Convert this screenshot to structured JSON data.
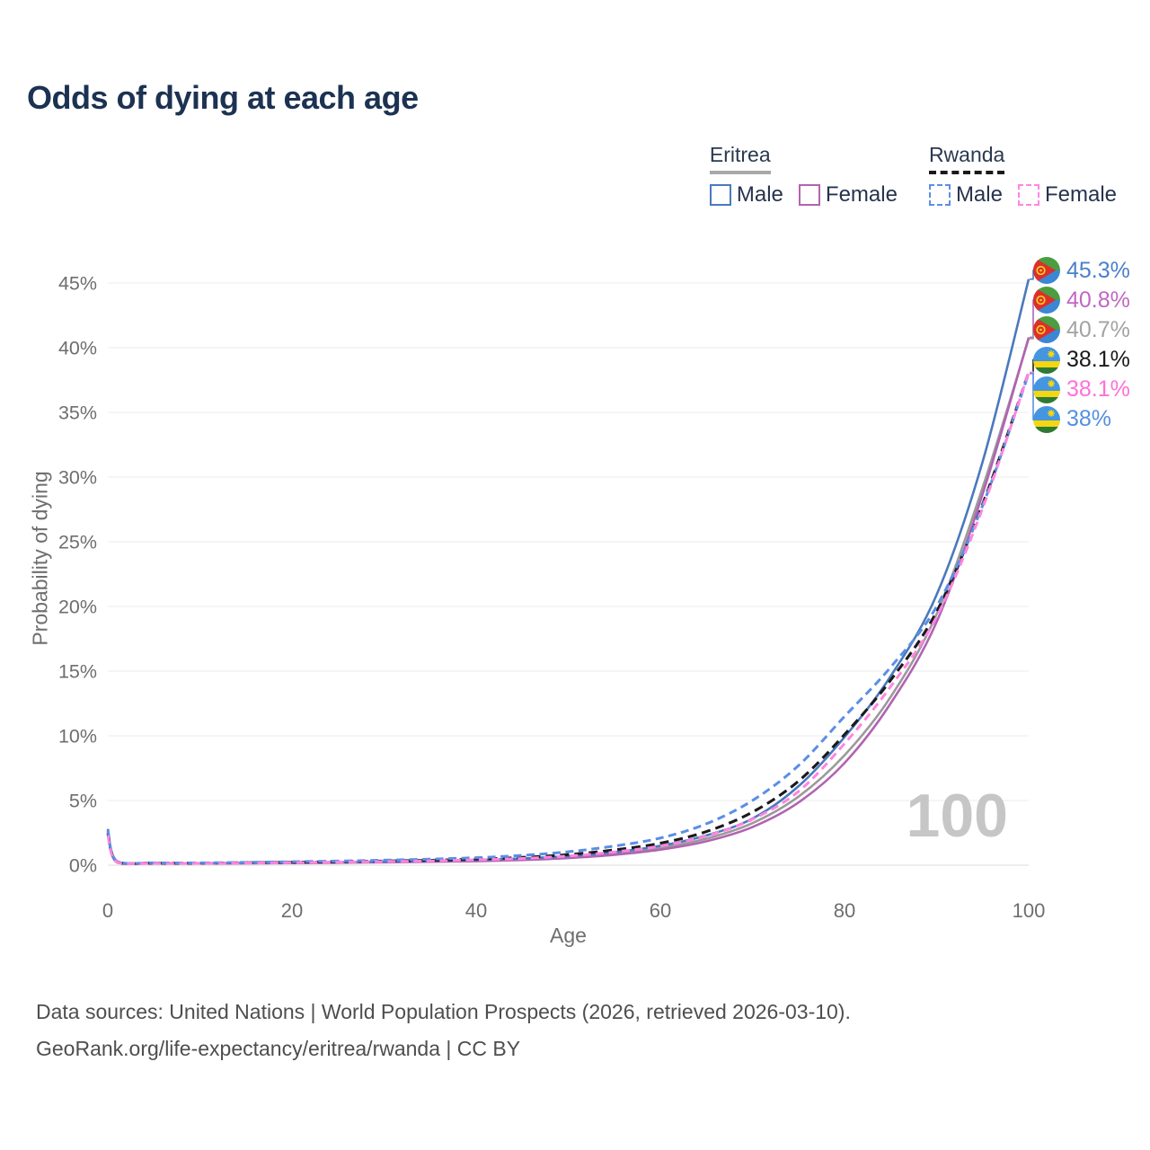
{
  "title": "Odds of dying at each age",
  "legend": {
    "groups": [
      {
        "name": "Eritrea",
        "line_style": "solid",
        "underline_color": "#a8a8a8",
        "items": [
          {
            "label": "Male",
            "color": "#4a79bd"
          },
          {
            "label": "Female",
            "color": "#b263b2"
          }
        ]
      },
      {
        "name": "Rwanda",
        "line_style": "dashed",
        "underline_color": "#1a1a1a",
        "items": [
          {
            "label": "Male",
            "color": "#5b8ee6"
          },
          {
            "label": "Female",
            "color": "#ff85e0"
          }
        ]
      }
    ]
  },
  "watermark": "100",
  "footer": {
    "line1": "Data sources: United Nations | World Population Prospects (2026, retrieved 2026-03-10).",
    "line2": "GeoRank.org/life-expectancy/eritrea/rwanda | CC BY"
  },
  "end_labels": [
    {
      "value": "45.3%",
      "color": "#4a80cc",
      "flag": "eritrea",
      "series": "Eritrea Male"
    },
    {
      "value": "40.8%",
      "color": "#c168c1",
      "flag": "eritrea",
      "series": "Eritrea Female"
    },
    {
      "value": "40.7%",
      "color": "#a3a3a3",
      "flag": "eritrea",
      "series": "Eritrea Both sexes"
    },
    {
      "value": "38.1%",
      "color": "#1a1a1a",
      "flag": "rwanda",
      "series": "Rwanda Both sexes"
    },
    {
      "value": "38.1%",
      "color": "#ff70d8",
      "flag": "rwanda",
      "series": "Rwanda Female"
    },
    {
      "value": "38%",
      "color": "#5590e0",
      "flag": "rwanda",
      "series": "Rwanda Male"
    }
  ],
  "chart_data": {
    "type": "line",
    "title": "Odds of dying at each age",
    "xlabel": "Age",
    "ylabel": "Probability of dying",
    "xlim": [
      0,
      100
    ],
    "ylim": [
      0,
      47
    ],
    "xticks": [
      0,
      20,
      40,
      60,
      80,
      100
    ],
    "yticks": [
      0,
      5,
      10,
      15,
      20,
      25,
      30,
      35,
      40,
      45
    ],
    "ytick_suffix": "%",
    "grid": "horizontal",
    "legend_position": "top-right",
    "series": [
      {
        "name": "Eritrea Both sexes",
        "country": "Eritrea",
        "sex": "Both",
        "color": "#9a9a9a",
        "dash": null,
        "width": 2.6,
        "points": [
          [
            0,
            2.6
          ],
          [
            1,
            0.23
          ],
          [
            5,
            0.14
          ],
          [
            10,
            0.14
          ],
          [
            15,
            0.16
          ],
          [
            20,
            0.18
          ],
          [
            25,
            0.21
          ],
          [
            30,
            0.25
          ],
          [
            35,
            0.29
          ],
          [
            40,
            0.35
          ],
          [
            45,
            0.46
          ],
          [
            50,
            0.62
          ],
          [
            55,
            0.9
          ],
          [
            60,
            1.35
          ],
          [
            65,
            2.05
          ],
          [
            70,
            3.25
          ],
          [
            75,
            5.3
          ],
          [
            80,
            8.5
          ],
          [
            85,
            13.0
          ],
          [
            90,
            19.4
          ],
          [
            95,
            29.2
          ],
          [
            100,
            40.7
          ]
        ]
      },
      {
        "name": "Eritrea Female",
        "country": "Eritrea",
        "sex": "Female",
        "color": "#b263b2",
        "dash": null,
        "width": 2.6,
        "points": [
          [
            0,
            2.4
          ],
          [
            1,
            0.21
          ],
          [
            5,
            0.13
          ],
          [
            10,
            0.13
          ],
          [
            15,
            0.14
          ],
          [
            20,
            0.16
          ],
          [
            25,
            0.19
          ],
          [
            30,
            0.22
          ],
          [
            35,
            0.26
          ],
          [
            40,
            0.31
          ],
          [
            45,
            0.4
          ],
          [
            50,
            0.55
          ],
          [
            55,
            0.8
          ],
          [
            60,
            1.2
          ],
          [
            65,
            1.85
          ],
          [
            70,
            2.95
          ],
          [
            75,
            4.85
          ],
          [
            80,
            7.9
          ],
          [
            85,
            12.5
          ],
          [
            90,
            18.8
          ],
          [
            95,
            28.7
          ],
          [
            100,
            40.8
          ]
        ]
      },
      {
        "name": "Eritrea Male",
        "country": "Eritrea",
        "sex": "Male",
        "color": "#4a79bd",
        "dash": null,
        "width": 2.6,
        "points": [
          [
            0,
            2.8
          ],
          [
            1,
            0.25
          ],
          [
            5,
            0.16
          ],
          [
            10,
            0.16
          ],
          [
            15,
            0.18
          ],
          [
            20,
            0.21
          ],
          [
            25,
            0.24
          ],
          [
            30,
            0.28
          ],
          [
            35,
            0.33
          ],
          [
            40,
            0.4
          ],
          [
            45,
            0.52
          ],
          [
            50,
            0.7
          ],
          [
            55,
            1.0
          ],
          [
            60,
            1.5
          ],
          [
            65,
            2.3
          ],
          [
            70,
            3.6
          ],
          [
            75,
            6.1
          ],
          [
            80,
            9.9
          ],
          [
            85,
            14.6
          ],
          [
            90,
            20.9
          ],
          [
            95,
            31.2
          ],
          [
            100,
            45.3
          ]
        ]
      },
      {
        "name": "Rwanda Both sexes",
        "country": "Rwanda",
        "sex": "Both",
        "color": "#1a1a1a",
        "dash": "10 6",
        "width": 3.1,
        "points": [
          [
            0,
            2.5
          ],
          [
            1,
            0.27
          ],
          [
            5,
            0.16
          ],
          [
            10,
            0.16
          ],
          [
            15,
            0.19
          ],
          [
            20,
            0.23
          ],
          [
            25,
            0.27
          ],
          [
            30,
            0.32
          ],
          [
            35,
            0.38
          ],
          [
            40,
            0.47
          ],
          [
            45,
            0.6
          ],
          [
            50,
            0.82
          ],
          [
            55,
            1.18
          ],
          [
            60,
            1.7
          ],
          [
            65,
            2.6
          ],
          [
            70,
            4.1
          ],
          [
            75,
            6.5
          ],
          [
            80,
            10.1
          ],
          [
            85,
            14.3
          ],
          [
            90,
            19.6
          ],
          [
            95,
            27.9
          ],
          [
            100,
            38.1
          ]
        ]
      },
      {
        "name": "Rwanda Male",
        "country": "Rwanda",
        "sex": "Male",
        "color": "#5b8ee6",
        "dash": "9 5.5",
        "width": 3,
        "points": [
          [
            0,
            2.7
          ],
          [
            1,
            0.3
          ],
          [
            5,
            0.18
          ],
          [
            10,
            0.18
          ],
          [
            15,
            0.22
          ],
          [
            20,
            0.27
          ],
          [
            25,
            0.32
          ],
          [
            30,
            0.39
          ],
          [
            35,
            0.47
          ],
          [
            40,
            0.58
          ],
          [
            45,
            0.76
          ],
          [
            50,
            1.04
          ],
          [
            55,
            1.48
          ],
          [
            60,
            2.1
          ],
          [
            65,
            3.2
          ],
          [
            70,
            5.0
          ],
          [
            75,
            7.7
          ],
          [
            80,
            11.5
          ],
          [
            85,
            15.3
          ],
          [
            90,
            20.0
          ],
          [
            95,
            27.8
          ],
          [
            100,
            38.0
          ]
        ]
      },
      {
        "name": "Rwanda Female",
        "country": "Rwanda",
        "sex": "Female",
        "color": "#ff85e0",
        "dash": "9 5.5",
        "width": 3,
        "points": [
          [
            0,
            2.3
          ],
          [
            1,
            0.24
          ],
          [
            5,
            0.14
          ],
          [
            10,
            0.14
          ],
          [
            15,
            0.17
          ],
          [
            20,
            0.2
          ],
          [
            25,
            0.24
          ],
          [
            30,
            0.28
          ],
          [
            35,
            0.33
          ],
          [
            40,
            0.41
          ],
          [
            45,
            0.52
          ],
          [
            50,
            0.71
          ],
          [
            55,
            1.02
          ],
          [
            60,
            1.48
          ],
          [
            65,
            2.25
          ],
          [
            70,
            3.55
          ],
          [
            75,
            5.7
          ],
          [
            80,
            9.4
          ],
          [
            85,
            13.8
          ],
          [
            90,
            19.2
          ],
          [
            95,
            27.6
          ],
          [
            100,
            38.1
          ]
        ]
      }
    ]
  }
}
